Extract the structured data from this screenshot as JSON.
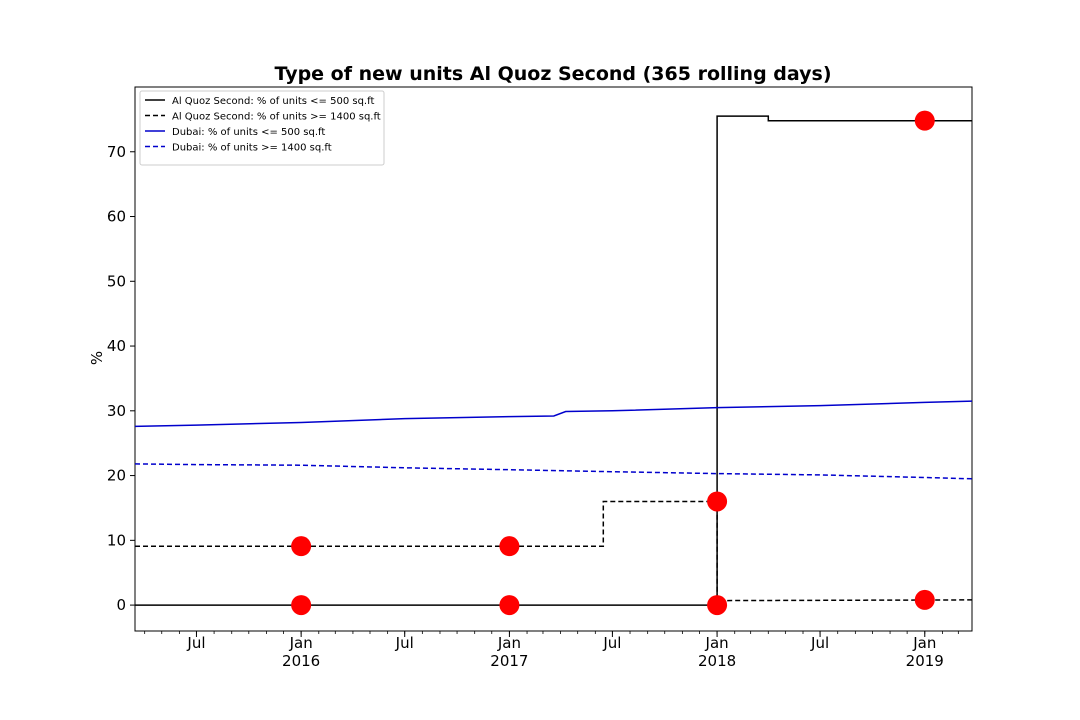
{
  "chart_data": {
    "type": "line",
    "title": "Type of new units Al Quoz Second (365 rolling days)",
    "xlabel": "",
    "ylabel": "%",
    "xlim": [
      "2015-03-15",
      "2019-03-25"
    ],
    "ylim": [
      -4,
      80
    ],
    "y_ticks": [
      0,
      10,
      20,
      30,
      40,
      50,
      60,
      70
    ],
    "x_ticks": [
      {
        "date": "2015-07-01",
        "label": "Jul",
        "year": ""
      },
      {
        "date": "2016-01-01",
        "label": "Jan",
        "year": "2016"
      },
      {
        "date": "2016-07-01",
        "label": "Jul",
        "year": ""
      },
      {
        "date": "2017-01-01",
        "label": "Jan",
        "year": "2017"
      },
      {
        "date": "2017-07-01",
        "label": "Jul",
        "year": ""
      },
      {
        "date": "2018-01-01",
        "label": "Jan",
        "year": "2018"
      },
      {
        "date": "2018-07-01",
        "label": "Jul",
        "year": ""
      },
      {
        "date": "2019-01-01",
        "label": "Jan",
        "year": "2019"
      }
    ],
    "grid": false,
    "legend_position": "top-left",
    "series": [
      {
        "name": "Al Quoz Second: % of units <= 500 sq.ft",
        "color": "#000000",
        "style": "solid",
        "step": true,
        "points": [
          [
            "2015-03-15",
            0
          ],
          [
            "2018-01-01",
            0
          ],
          [
            "2018-01-01",
            75.5
          ],
          [
            "2018-04-01",
            75.5
          ],
          [
            "2018-04-01",
            74.8
          ],
          [
            "2019-03-25",
            74.8
          ]
        ]
      },
      {
        "name": "Al Quoz Second: % of units >= 1400 sq.ft",
        "color": "#000000",
        "style": "dashed",
        "step": true,
        "points": [
          [
            "2015-03-15",
            9.1
          ],
          [
            "2017-06-15",
            9.1
          ],
          [
            "2017-06-15",
            16.0
          ],
          [
            "2018-01-01",
            16.0
          ],
          [
            "2018-01-01",
            0.7
          ],
          [
            "2019-03-25",
            0.8
          ]
        ]
      },
      {
        "name": "Dubai: % of units <= 500 sq.ft",
        "color": "#0000cc",
        "style": "solid",
        "step": false,
        "points": [
          [
            "2015-03-15",
            27.6
          ],
          [
            "2015-07-01",
            27.8
          ],
          [
            "2016-01-01",
            28.2
          ],
          [
            "2016-07-01",
            28.8
          ],
          [
            "2017-01-01",
            29.1
          ],
          [
            "2017-03-20",
            29.2
          ],
          [
            "2017-04-10",
            29.9
          ],
          [
            "2017-07-01",
            30.0
          ],
          [
            "2018-01-01",
            30.5
          ],
          [
            "2018-07-01",
            30.8
          ],
          [
            "2019-01-01",
            31.3
          ],
          [
            "2019-03-25",
            31.5
          ]
        ]
      },
      {
        "name": "Dubai: % of units >= 1400 sq.ft",
        "color": "#0000cc",
        "style": "dashed",
        "step": false,
        "points": [
          [
            "2015-03-15",
            21.8
          ],
          [
            "2015-07-01",
            21.7
          ],
          [
            "2016-01-01",
            21.6
          ],
          [
            "2016-07-01",
            21.2
          ],
          [
            "2017-01-01",
            20.9
          ],
          [
            "2017-07-01",
            20.6
          ],
          [
            "2018-01-01",
            20.3
          ],
          [
            "2018-07-01",
            20.1
          ],
          [
            "2019-01-01",
            19.7
          ],
          [
            "2019-03-25",
            19.5
          ]
        ]
      }
    ],
    "markers": {
      "color": "#ff0000",
      "points": [
        [
          "2016-01-01",
          0
        ],
        [
          "2016-01-01",
          9.1
        ],
        [
          "2017-01-01",
          0
        ],
        [
          "2017-01-01",
          9.1
        ],
        [
          "2018-01-01",
          0
        ],
        [
          "2018-01-01",
          16.0
        ],
        [
          "2019-01-01",
          0.8
        ],
        [
          "2019-01-01",
          74.8
        ]
      ]
    }
  }
}
